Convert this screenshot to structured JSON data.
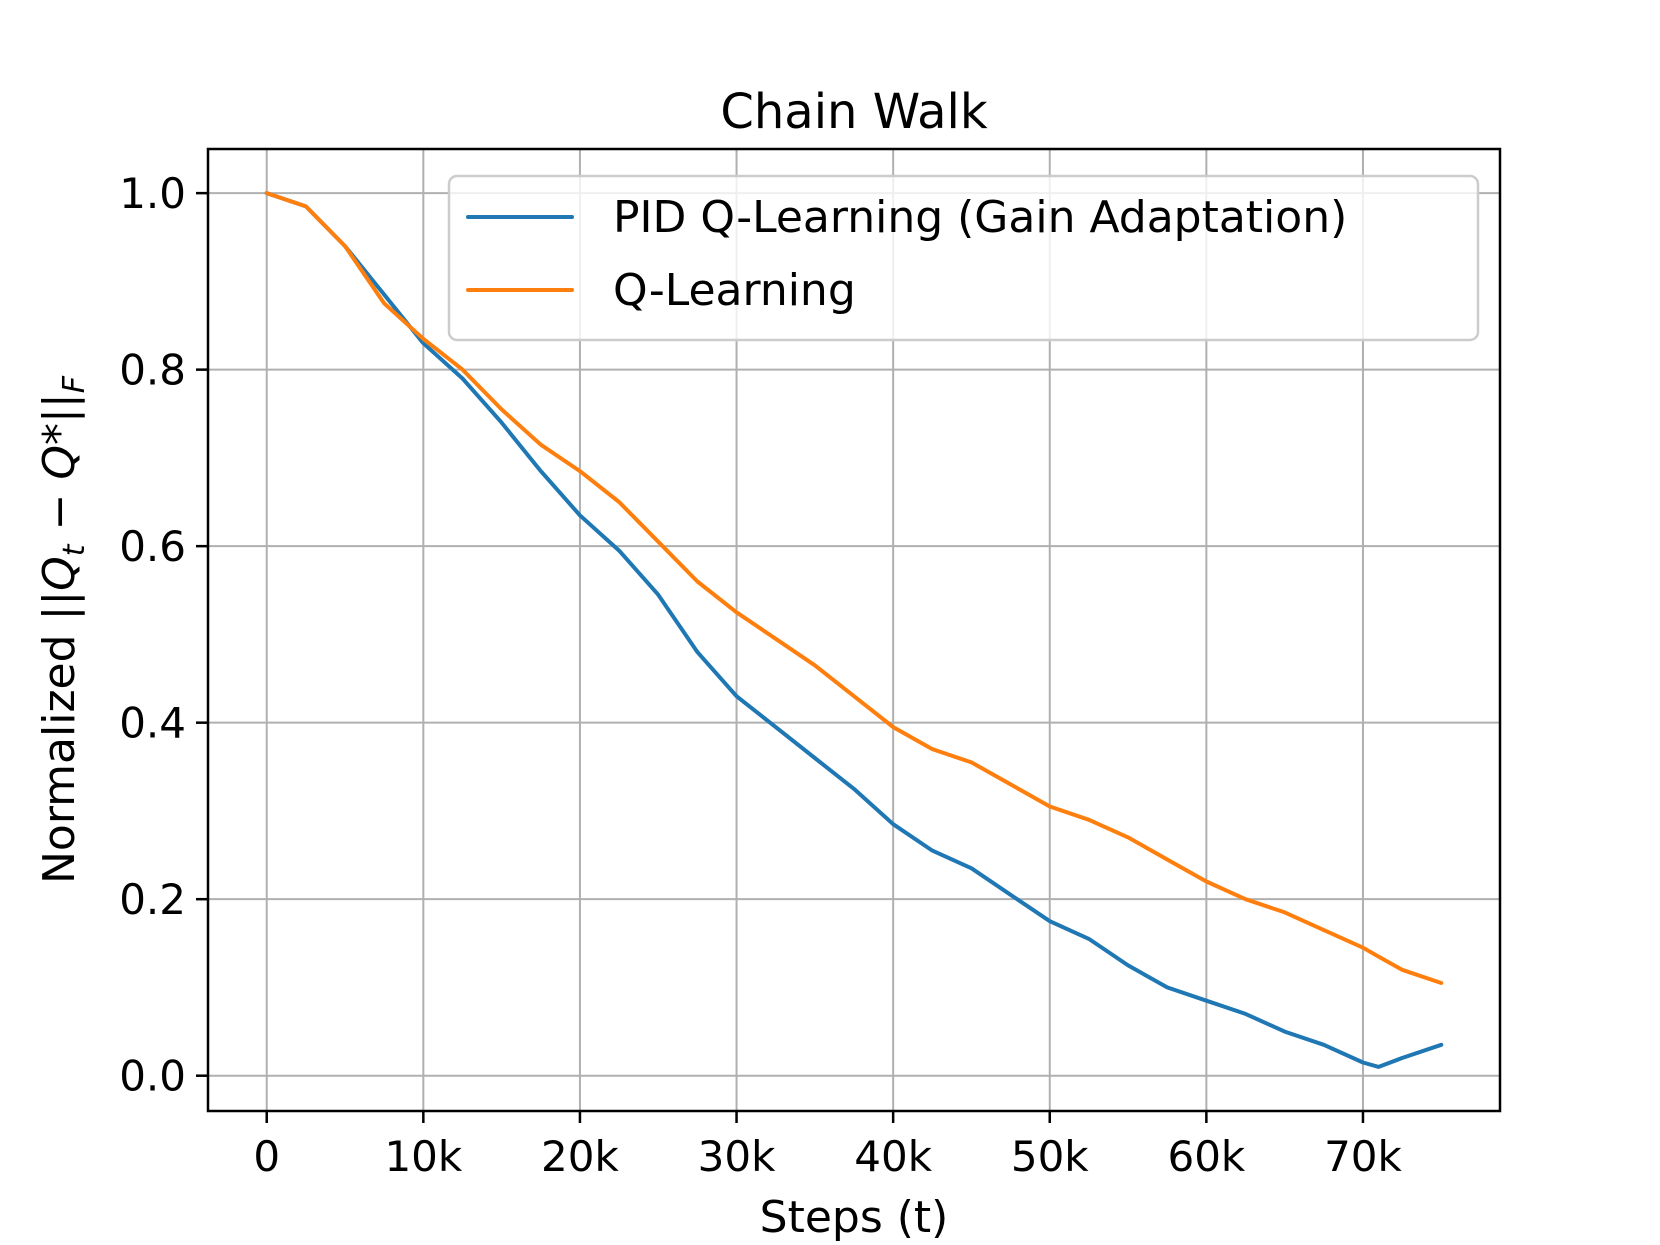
{
  "chart_data": {
    "type": "line",
    "title": "Chain Walk",
    "xlabel": "Steps (t)",
    "ylabel_parts": {
      "prefix": "Normalized ||",
      "q": "Q",
      "t_sub": "t",
      "middle": " − ",
      "qstar": "Q*",
      "bars": "||",
      "f_sub": "F"
    },
    "xlim": [
      -3750,
      78750
    ],
    "ylim": [
      -0.04,
      1.05
    ],
    "x_ticks": [
      {
        "value": 0,
        "label": "0"
      },
      {
        "value": 10000,
        "label": "10k"
      },
      {
        "value": 20000,
        "label": "20k"
      },
      {
        "value": 30000,
        "label": "30k"
      },
      {
        "value": 40000,
        "label": "40k"
      },
      {
        "value": 50000,
        "label": "50k"
      },
      {
        "value": 60000,
        "label": "60k"
      },
      {
        "value": 70000,
        "label": "70k"
      }
    ],
    "y_ticks": [
      {
        "value": 0.0,
        "label": "0.0"
      },
      {
        "value": 0.2,
        "label": "0.2"
      },
      {
        "value": 0.4,
        "label": "0.4"
      },
      {
        "value": 0.6,
        "label": "0.6"
      },
      {
        "value": 0.8,
        "label": "0.8"
      },
      {
        "value": 1.0,
        "label": "1.0"
      }
    ],
    "grid": true,
    "legend_position": "top-right",
    "x": [
      0,
      2500,
      5000,
      7500,
      10000,
      12500,
      15000,
      17500,
      20000,
      22500,
      25000,
      27500,
      30000,
      32500,
      35000,
      37500,
      40000,
      42500,
      45000,
      47500,
      50000,
      52500,
      55000,
      57500,
      60000,
      62500,
      65000,
      67500,
      70000,
      71000,
      72500,
      75000
    ],
    "series": [
      {
        "name": "PID Q-Learning (Gain Adaptation)",
        "color": "#1f77b4",
        "values": [
          1.0,
          0.985,
          0.94,
          0.885,
          0.83,
          0.79,
          0.74,
          0.685,
          0.635,
          0.595,
          0.545,
          0.48,
          0.43,
          0.395,
          0.36,
          0.325,
          0.285,
          0.255,
          0.235,
          0.205,
          0.175,
          0.155,
          0.125,
          0.1,
          0.085,
          0.07,
          0.05,
          0.035,
          0.015,
          0.01,
          0.02,
          0.035
        ]
      },
      {
        "name": "Q-Learning",
        "color": "#ff7f0e",
        "values": [
          1.0,
          0.985,
          0.94,
          0.875,
          0.835,
          0.8,
          0.755,
          0.715,
          0.685,
          0.65,
          0.605,
          0.56,
          0.525,
          0.495,
          0.465,
          0.43,
          0.395,
          0.37,
          0.355,
          0.33,
          0.305,
          0.29,
          0.27,
          0.245,
          0.22,
          0.2,
          0.185,
          0.165,
          0.145,
          0.135,
          0.12,
          0.105
        ]
      }
    ]
  }
}
